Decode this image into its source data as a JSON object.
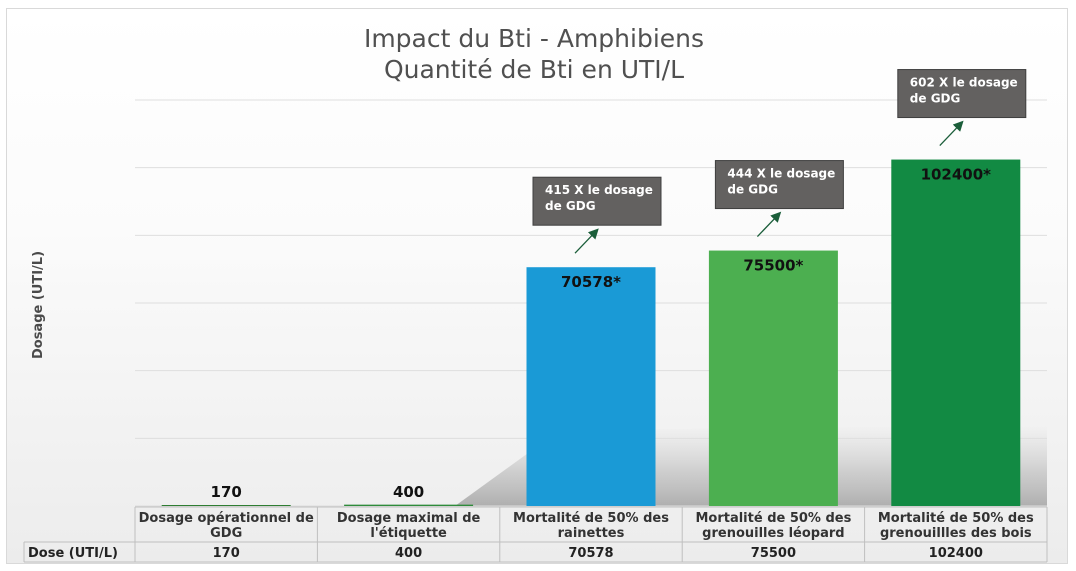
{
  "chart_data": {
    "type": "bar",
    "title": [
      "Impact du Bti - Amphibiens",
      "Quantité de Bti en UTI/L"
    ],
    "ylabel": "Dosage (UTI/L)",
    "ylim": [
      0,
      120000
    ],
    "grid": true,
    "categories": [
      [
        "Dosage opérationnel de",
        "GDG"
      ],
      [
        "Dosage maximal de",
        "l'étiquette"
      ],
      [
        "Mortalité de 50% des",
        "rainettes"
      ],
      [
        "Mortalité de 50% des",
        "grenouilles léopard"
      ],
      [
        "Mortalité de 50% des",
        "grenouillles des bois"
      ]
    ],
    "values": [
      170,
      400,
      70578,
      75500,
      102400
    ],
    "data_labels": [
      "170",
      "400",
      "70578*",
      "75500*",
      "102400*"
    ],
    "colors": [
      "#2e7d32",
      "#2e8b3a",
      "#1a9ad6",
      "#4caf50",
      "#128a43"
    ],
    "table": {
      "row_header": "Dose (UTI/L)",
      "cells": [
        "170",
        "400",
        "70578",
        "75500",
        "102400"
      ]
    },
    "annotations": [
      {
        "bar_index": 2,
        "lines": [
          "415 X le dosage",
          "de GDG"
        ]
      },
      {
        "bar_index": 3,
        "lines": [
          "444 X le dosage",
          "de GDG"
        ]
      },
      {
        "bar_index": 4,
        "lines": [
          "602 X le dosage",
          "de GDG"
        ]
      }
    ],
    "annotation_color": "#636160",
    "arrow_color": "#1b5e3a"
  }
}
